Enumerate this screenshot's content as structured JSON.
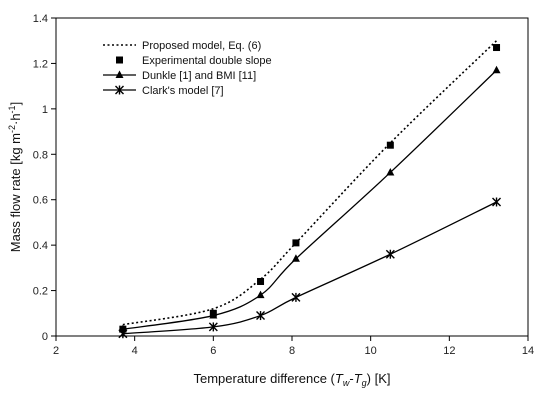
{
  "chart_data": {
    "type": "line",
    "title": "",
    "xlabel": {
      "prefix": "Temperature difference (",
      "T1": "T",
      "sub1": "w",
      "dash": "-",
      "T2": "T",
      "sub2": "g",
      "suffix": ") [K]"
    },
    "ylabel": {
      "main": "Mass flow rate [kg m",
      "sup1": "-2",
      "mid": "·h",
      "sup2": "-1",
      "end": "]"
    },
    "xlim": [
      2,
      14
    ],
    "ylim": [
      0,
      1.4
    ],
    "xticks": [
      "2",
      "4",
      "6",
      "8",
      "10",
      "12",
      "14"
    ],
    "yticks": [
      "0",
      "0.2",
      "0.4",
      "0.6",
      "0.8",
      "1",
      "1.2",
      "1.4"
    ],
    "xtick_values": [
      2,
      4,
      6,
      8,
      10,
      12,
      14
    ],
    "ytick_values": [
      0,
      0.2,
      0.4,
      0.6,
      0.8,
      1.0,
      1.2,
      1.4
    ],
    "grid": false,
    "legend_position": "top-left",
    "series": [
      {
        "name": "Proposed model, Eq. (6)",
        "style": "dotted",
        "marker": "none",
        "x": [
          3.7,
          6.0,
          7.2,
          8.1,
          10.5,
          13.2
        ],
        "y": [
          0.05,
          0.12,
          0.25,
          0.41,
          0.85,
          1.3
        ]
      },
      {
        "name": "Experimental double slope",
        "style": "none",
        "marker": "square",
        "x": [
          3.7,
          6.0,
          7.2,
          8.1,
          10.5,
          13.2
        ],
        "y": [
          0.03,
          0.1,
          0.24,
          0.41,
          0.84,
          1.27
        ]
      },
      {
        "name": "Dunkle [1] and BMI [11]",
        "style": "solid",
        "marker": "triangle",
        "x": [
          3.7,
          6.0,
          7.2,
          8.1,
          10.5,
          13.2
        ],
        "y": [
          0.03,
          0.09,
          0.18,
          0.34,
          0.72,
          1.17
        ]
      },
      {
        "name": "Clark's model [7]",
        "style": "solid",
        "marker": "star",
        "x": [
          3.7,
          6.0,
          7.2,
          8.1,
          10.5,
          13.2
        ],
        "y": [
          0.01,
          0.04,
          0.09,
          0.17,
          0.36,
          0.59
        ]
      }
    ]
  }
}
